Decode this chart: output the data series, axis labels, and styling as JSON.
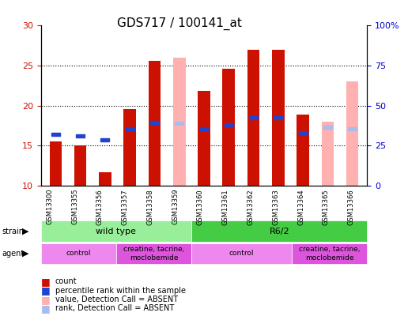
{
  "title": "GDS717 / 100141_at",
  "samples": [
    "GSM13300",
    "GSM13355",
    "GSM13356",
    "GSM13357",
    "GSM13358",
    "GSM13359",
    "GSM13360",
    "GSM13361",
    "GSM13362",
    "GSM13363",
    "GSM13364",
    "GSM13365",
    "GSM13366"
  ],
  "ylim_left": [
    10,
    30
  ],
  "ylim_right": [
    0,
    100
  ],
  "yticks_left": [
    10,
    15,
    20,
    25,
    30
  ],
  "yticks_right": [
    0,
    25,
    50,
    75,
    100
  ],
  "yticklabels_right": [
    "0",
    "25",
    "50",
    "75",
    "100%"
  ],
  "red_bars": [
    15.5,
    15.0,
    11.7,
    19.6,
    25.6,
    null,
    21.8,
    24.6,
    27.0,
    27.0,
    18.9,
    null,
    null
  ],
  "pink_bars": [
    null,
    null,
    null,
    null,
    null,
    26.0,
    null,
    null,
    null,
    null,
    null,
    18.0,
    23.0
  ],
  "blue_squares": [
    16.4,
    16.2,
    15.7,
    17.1,
    17.9,
    null,
    17.1,
    17.6,
    18.5,
    18.5,
    16.6,
    null,
    null
  ],
  "lightblue_squares": [
    null,
    null,
    null,
    null,
    null,
    17.8,
    null,
    null,
    null,
    null,
    null,
    17.3,
    17.1
  ],
  "bar_bottom": 10,
  "bar_width": 0.5,
  "red_color": "#cc1100",
  "pink_color": "#ffb0b0",
  "blue_color": "#2244cc",
  "lightblue_color": "#aabbee",
  "grid_color": "#000000",
  "strain_groups": [
    {
      "label": "wild type",
      "start": 0,
      "end": 5,
      "color": "#99ee99"
    },
    {
      "label": "R6/2",
      "start": 6,
      "end": 12,
      "color": "#44cc44"
    }
  ],
  "agent_groups": [
    {
      "label": "control",
      "start": 0,
      "end": 2,
      "color": "#ee88ee"
    },
    {
      "label": "creatine, tacrine,\nmoclobemide",
      "start": 3,
      "end": 5,
      "color": "#dd55dd"
    },
    {
      "label": "control",
      "start": 6,
      "end": 9,
      "color": "#ee88ee"
    },
    {
      "label": "creatine, tacrine,\nmoclobemide",
      "start": 10,
      "end": 12,
      "color": "#dd55dd"
    }
  ],
  "legend_items": [
    {
      "label": "count",
      "color": "#cc1100",
      "marker": "s"
    },
    {
      "label": "percentile rank within the sample",
      "color": "#2244cc",
      "marker": "s"
    },
    {
      "label": "value, Detection Call = ABSENT",
      "color": "#ffb0b0",
      "marker": "s"
    },
    {
      "label": "rank, Detection Call = ABSENT",
      "color": "#aabbee",
      "marker": "s"
    }
  ]
}
